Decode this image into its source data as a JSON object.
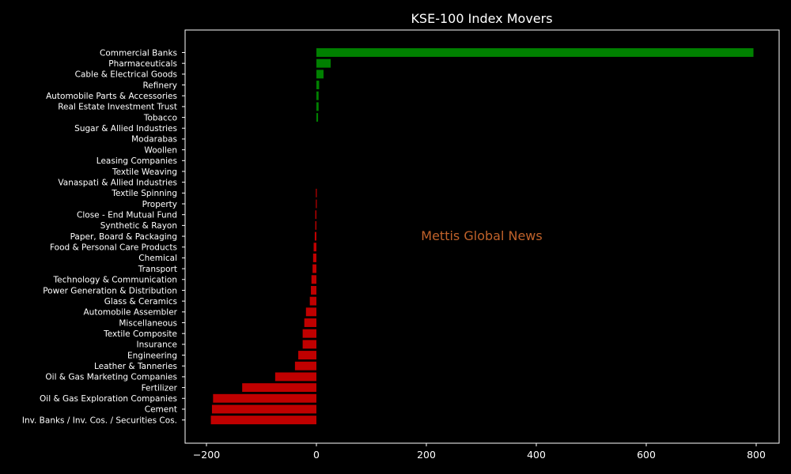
{
  "chart_data": {
    "type": "bar",
    "orientation": "horizontal",
    "title": "KSE-100 Index Movers",
    "xlabel": "",
    "ylabel": "",
    "xlim": [
      -240,
      845
    ],
    "xticks": [
      -200,
      0,
      200,
      400,
      600,
      800
    ],
    "grid": false,
    "watermark": "Mettis Global News",
    "colors": {
      "positive": "#008000",
      "negative": "#c00000",
      "watermark": "#c0622a",
      "background": "#000000",
      "axes": "#ffffff"
    },
    "categories": [
      "Commercial Banks",
      "Pharmaceuticals",
      "Cable & Electrical Goods",
      "Refinery",
      "Automobile Parts & Accessories",
      "Real Estate Investment Trust",
      "Tobacco",
      "Sugar & Allied Industries",
      "Modarabas",
      "Woollen",
      "Leasing Companies",
      "Textile Weaving",
      "Vanaspati & Allied Industries",
      "Textile Spinning",
      "Property",
      "Close - End Mutual Fund",
      "Synthetic & Rayon",
      "Paper, Board & Packaging",
      "Food & Personal Care Products",
      "Chemical",
      "Transport",
      "Technology & Communication",
      "Power Generation & Distribution",
      "Glass & Ceramics",
      "Automobile Assembler",
      "Miscellaneous",
      "Textile Composite",
      "Insurance",
      "Engineering",
      "Leather & Tanneries",
      "Oil & Gas Marketing Companies",
      "Fertilizer",
      "Oil & Gas Exploration Companies",
      "Cement",
      "Inv. Banks / Inv. Cos. / Securities Cos."
    ],
    "values": [
      795,
      26,
      13,
      5,
      4,
      4,
      3,
      0,
      0,
      0,
      0,
      0,
      0,
      -1,
      -1,
      -2,
      -2,
      -3,
      -5,
      -6,
      -7,
      -9,
      -10,
      -12,
      -19,
      -22,
      -25,
      -25,
      -33,
      -39,
      -75,
      -135,
      -188,
      -190,
      -192
    ]
  }
}
